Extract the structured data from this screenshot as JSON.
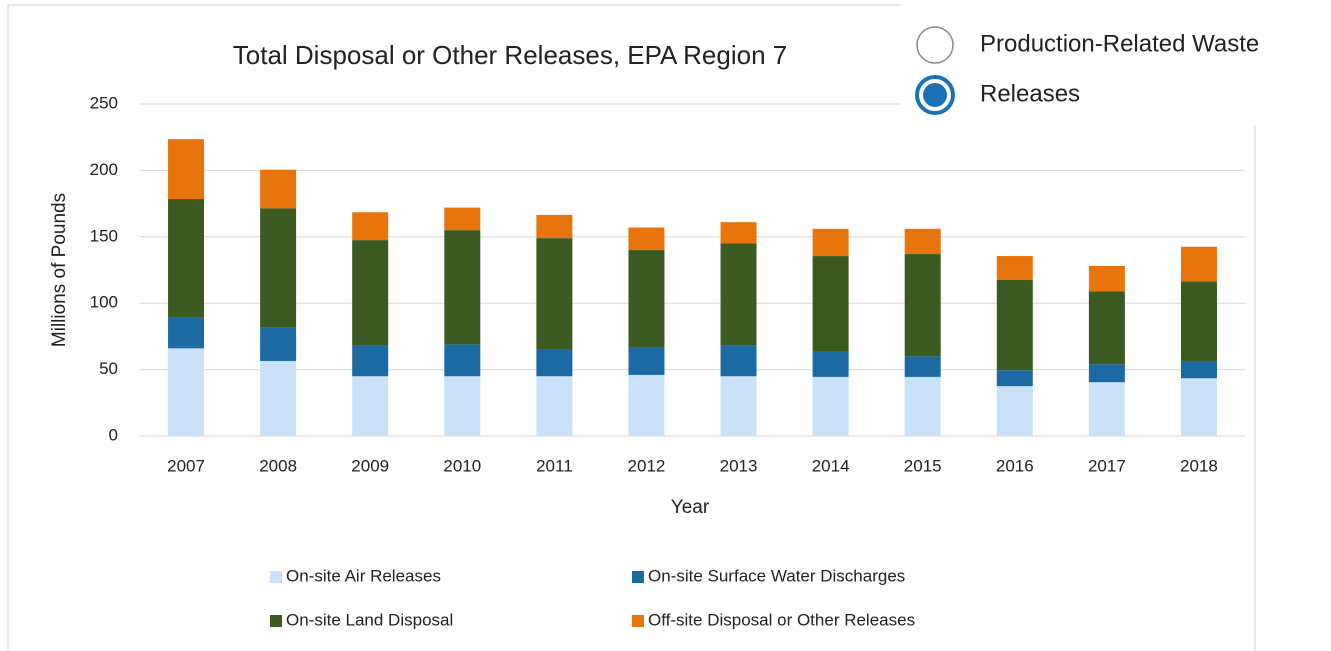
{
  "controls": {
    "options": [
      "Production-Related Waste",
      "Releases"
    ],
    "selected": 1
  },
  "chart_data": {
    "type": "stacked_bar",
    "title": "Total Disposal or Other Releases, EPA Region 7",
    "x_label": "Year",
    "y_label": "Millions of Pounds",
    "categories": [
      "2007",
      "2008",
      "2009",
      "2010",
      "2011",
      "2012",
      "2013",
      "2014",
      "2015",
      "2016",
      "2017",
      "2018"
    ],
    "series": [
      {
        "name": "On-site Air Releases",
        "color": "#c9e2fa",
        "values": [
          66,
          56.5,
          45,
          45,
          45,
          46,
          45,
          44.5,
          44.5,
          37.5,
          40.5,
          43.5
        ]
      },
      {
        "name": "On-site Surface Water Discharges",
        "color": "#1c6aa3",
        "values": [
          23,
          25,
          23.5,
          24,
          20.5,
          21,
          23,
          19.5,
          15.5,
          12,
          13.5,
          13
        ]
      },
      {
        "name": "On-site Land Disposal",
        "color": "#3a5a22",
        "values": [
          89.5,
          90,
          79,
          86,
          83.5,
          73,
          77,
          71.5,
          77,
          68,
          55,
          60
        ]
      },
      {
        "name": "Off-site Disposal or Other Releases",
        "color": "#e8740c",
        "values": [
          45,
          29,
          21,
          17,
          17.5,
          17,
          16,
          20.5,
          19,
          18,
          19,
          26
        ]
      }
    ],
    "ylim": [
      0,
      250
    ],
    "yticks": [
      0,
      50,
      100,
      150,
      200,
      250
    ],
    "grid": true
  }
}
